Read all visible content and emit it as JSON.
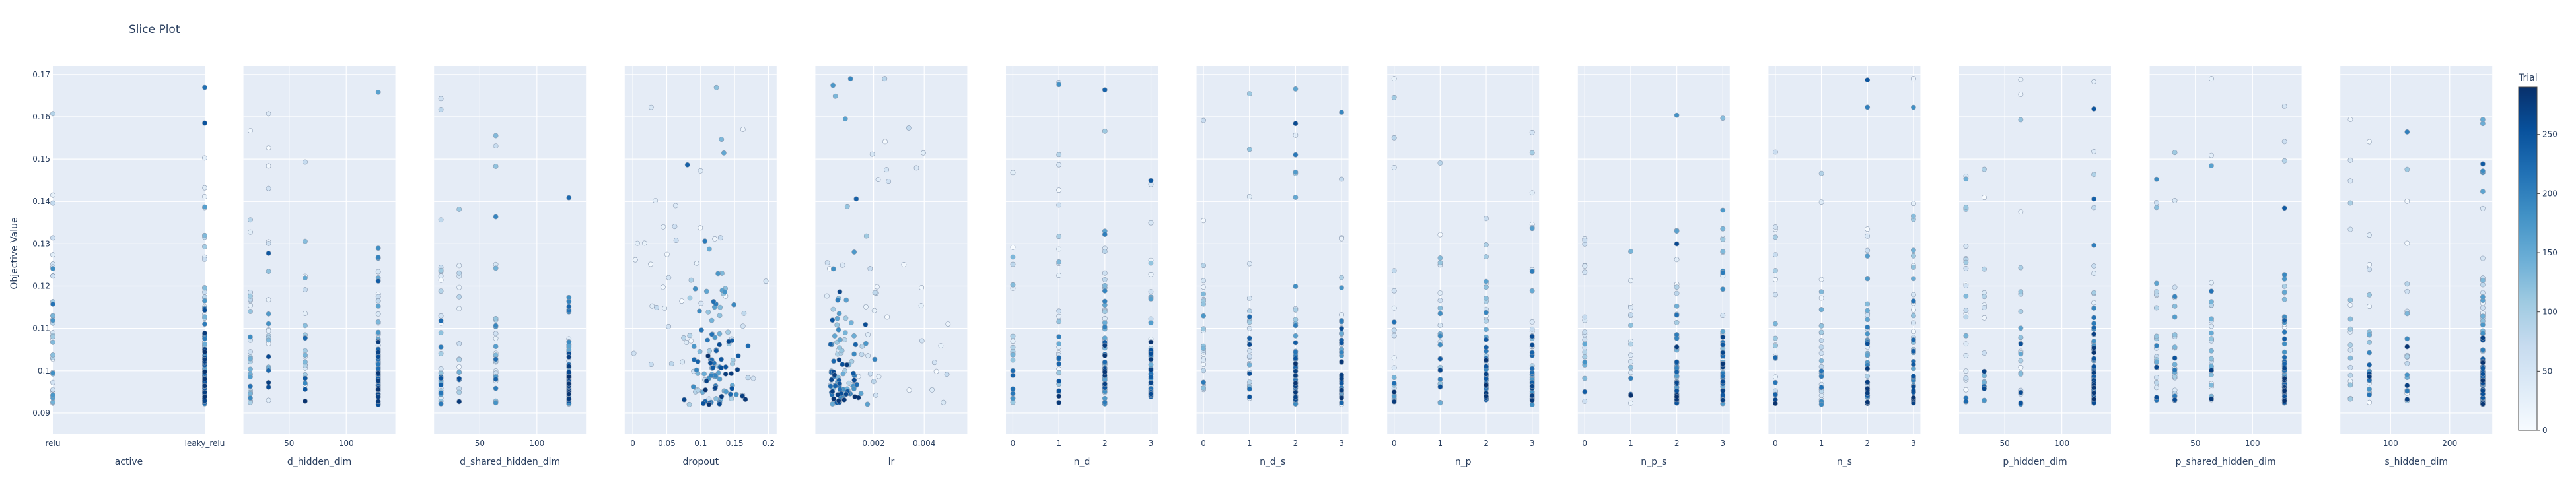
{
  "chart_data": {
    "type": "scatter",
    "title": "Slice Plot",
    "ylabel": "Objective Value",
    "ylim": [
      0.085,
      0.172
    ],
    "yticks": [
      0.09,
      0.1,
      0.11,
      0.12,
      0.13,
      0.14,
      0.15,
      0.16,
      0.17
    ],
    "colorbar": {
      "title": "Trial",
      "min": 0,
      "max": 290,
      "ticks": [
        0,
        50,
        100,
        150,
        200,
        250
      ]
    },
    "panels": [
      {
        "param": "active",
        "kind": "cat",
        "categories": [
          "relu",
          "leaky_relu"
        ]
      },
      {
        "param": "d_hidden_dim",
        "kind": "num",
        "xlim": [
          10,
          143
        ],
        "ticks": [
          50,
          100
        ],
        "choices": [
          16,
          32,
          64,
          128
        ]
      },
      {
        "param": "d_shared_hidden_dim",
        "kind": "num",
        "xlim": [
          10,
          143
        ],
        "ticks": [
          50,
          100
        ],
        "choices": [
          16,
          32,
          64,
          128
        ]
      },
      {
        "param": "dropout",
        "kind": "num",
        "xlim": [
          -0.012,
          0.212
        ],
        "ticks": [
          0,
          0.05,
          0.1,
          0.15,
          0.2
        ],
        "range": [
          0,
          0.2
        ]
      },
      {
        "param": "lr",
        "kind": "num",
        "xlim": [
          -0.0003,
          0.0057
        ],
        "ticks": [
          0.002,
          0.004
        ],
        "range": [
          1e-05,
          0.0055
        ]
      },
      {
        "param": "n_d",
        "kind": "num",
        "xlim": [
          -0.15,
          3.15
        ],
        "ticks": [
          0,
          1,
          2,
          3
        ],
        "choices": [
          0,
          1,
          2,
          3
        ]
      },
      {
        "param": "n_d_s",
        "kind": "num",
        "xlim": [
          -0.15,
          3.15
        ],
        "ticks": [
          0,
          1,
          2,
          3
        ],
        "choices": [
          0,
          1,
          2,
          3
        ]
      },
      {
        "param": "n_p",
        "kind": "num",
        "xlim": [
          -0.15,
          3.15
        ],
        "ticks": [
          0,
          1,
          2,
          3
        ],
        "choices": [
          0,
          1,
          2,
          3
        ]
      },
      {
        "param": "n_p_s",
        "kind": "num",
        "xlim": [
          -0.15,
          3.15
        ],
        "ticks": [
          0,
          1,
          2,
          3
        ],
        "choices": [
          0,
          1,
          2,
          3
        ]
      },
      {
        "param": "n_s",
        "kind": "num",
        "xlim": [
          -0.15,
          3.15
        ],
        "ticks": [
          0,
          1,
          2,
          3
        ],
        "choices": [
          0,
          1,
          2,
          3
        ]
      },
      {
        "param": "p_hidden_dim",
        "kind": "num",
        "xlim": [
          10,
          143
        ],
        "ticks": [
          50,
          100
        ],
        "choices": [
          16,
          32,
          64,
          128
        ]
      },
      {
        "param": "p_shared_hidden_dim",
        "kind": "num",
        "xlim": [
          10,
          143
        ],
        "ticks": [
          50,
          100
        ],
        "choices": [
          16,
          32,
          64,
          128
        ]
      },
      {
        "param": "s_hidden_dim",
        "kind": "num",
        "xlim": [
          15,
          272
        ],
        "ticks": [
          100,
          200
        ],
        "choices": [
          32,
          64,
          128,
          256
        ]
      }
    ]
  }
}
